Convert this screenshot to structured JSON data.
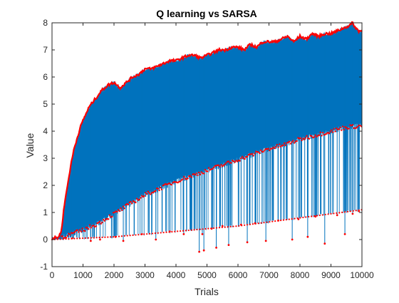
{
  "chart_data": {
    "type": "line",
    "title": "Q learning vs SARSA",
    "xlabel": "Trials",
    "ylabel": "Value",
    "xlim": [
      0,
      10000
    ],
    "ylim": [
      -1,
      8
    ],
    "xticks": [
      0,
      1000,
      2000,
      3000,
      4000,
      5000,
      6000,
      7000,
      8000,
      9000,
      10000
    ],
    "yticks": [
      -1,
      0,
      1,
      2,
      3,
      4,
      5,
      6,
      7,
      8
    ],
    "grid": false,
    "legend": null,
    "colors": {
      "line": "#0072BD",
      "markers": "#FF0000",
      "axis": "#262626"
    },
    "series": [
      {
        "role": "upper-envelope",
        "x": [
          0,
          200,
          300,
          400,
          500,
          600,
          700,
          800,
          900,
          1000,
          1200,
          1400,
          1600,
          1800,
          2000,
          2200,
          2400,
          2600,
          2800,
          3000,
          3200,
          3400,
          3600,
          3800,
          4000,
          4200,
          4400,
          4600,
          4800,
          5000,
          5200,
          5400,
          5600,
          5800,
          6000,
          6200,
          6400,
          6600,
          6800,
          7000,
          7200,
          7400,
          7600,
          7800,
          8000,
          8200,
          8400,
          8600,
          8800,
          9000,
          9200,
          9400,
          9600,
          9700,
          9800,
          9900,
          10000
        ],
        "y": [
          0.05,
          0.08,
          0.3,
          1.3,
          2.0,
          2.7,
          3.3,
          3.7,
          4.1,
          4.4,
          4.9,
          5.2,
          5.5,
          5.7,
          5.8,
          5.6,
          5.8,
          6.0,
          6.1,
          6.3,
          6.3,
          6.4,
          6.5,
          6.6,
          6.6,
          6.7,
          6.8,
          6.8,
          6.7,
          6.8,
          6.9,
          7.0,
          7.0,
          7.1,
          7.1,
          7.0,
          7.2,
          7.1,
          7.3,
          7.3,
          7.3,
          7.4,
          7.5,
          7.3,
          7.5,
          7.4,
          7.6,
          7.5,
          7.6,
          7.6,
          7.7,
          7.8,
          7.9,
          8.0,
          7.8,
          7.7,
          7.7
        ]
      },
      {
        "role": "middle-band",
        "x": [
          300,
          500,
          1000,
          1500,
          2000,
          2500,
          3000,
          3500,
          4000,
          4500,
          5000,
          5500,
          6000,
          6500,
          7000,
          7500,
          8000,
          8500,
          9000,
          9500,
          10000
        ],
        "y": [
          0.1,
          0.15,
          0.35,
          0.6,
          0.95,
          1.3,
          1.65,
          1.9,
          2.15,
          2.35,
          2.55,
          2.75,
          2.95,
          3.15,
          3.35,
          3.5,
          3.7,
          3.85,
          4.0,
          4.15,
          4.2
        ]
      },
      {
        "role": "lower-band",
        "x": [
          0,
          1000,
          2000,
          3000,
          4000,
          5000,
          6000,
          7000,
          8000,
          9000,
          10000
        ],
        "y": [
          0.0,
          0.05,
          0.1,
          0.2,
          0.3,
          0.4,
          0.5,
          0.65,
          0.8,
          0.95,
          1.1
        ]
      },
      {
        "role": "dips",
        "x": [
          650,
          1250,
          1550,
          2050,
          2300,
          2900,
          3350,
          3800,
          4250,
          4750,
          4850,
          4900,
          5150,
          5300,
          5500,
          5700,
          6100,
          6300,
          6550,
          6900,
          7300,
          7750,
          7950,
          8250,
          8500,
          8800,
          9200,
          9450,
          9700,
          9900
        ],
        "y": [
          0.05,
          -0.05,
          0.0,
          0.1,
          -0.05,
          0.2,
          0.0,
          0.3,
          0.2,
          -0.45,
          0.2,
          -0.4,
          0.4,
          -0.3,
          0.5,
          -0.2,
          0.55,
          -0.1,
          0.6,
          -0.05,
          0.7,
          0.0,
          0.75,
          0.1,
          0.85,
          -0.15,
          0.9,
          0.2,
          0.95,
          1.05
        ]
      }
    ]
  }
}
